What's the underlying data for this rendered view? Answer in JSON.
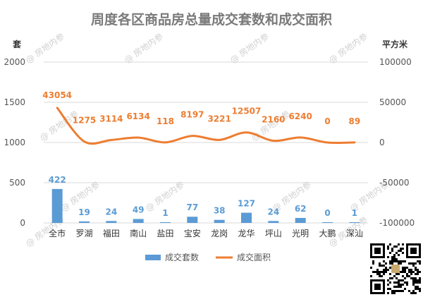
{
  "chart_data": {
    "type": "bar",
    "title": "周度各区商品房总量成交套数和成交面积",
    "y_left_unit": "套",
    "y_right_unit": "平方米",
    "categories": [
      "全市",
      "罗湖",
      "福田",
      "南山",
      "盐田",
      "宝安",
      "龙岗",
      "龙华",
      "坪山",
      "光明",
      "大鹏",
      "深汕"
    ],
    "series": [
      {
        "name": "成交套数",
        "type": "bar",
        "axis": "left",
        "color": "#5b9bd5",
        "values": [
          422,
          19,
          24,
          49,
          1,
          77,
          38,
          127,
          24,
          62,
          0,
          1
        ]
      },
      {
        "name": "成交面积",
        "type": "line",
        "axis": "right",
        "color": "#ed7d31",
        "values": [
          43054,
          1275,
          3114,
          6134,
          118,
          8197,
          3221,
          12507,
          2160,
          6240,
          0,
          89
        ]
      }
    ],
    "y_left": {
      "min": 0,
      "max": 2000,
      "ticks": [
        0,
        500,
        1000,
        1500,
        2000
      ]
    },
    "y_right": {
      "min": -100000,
      "max": 100000,
      "ticks": [
        -100000,
        -50000,
        0,
        50000,
        100000
      ]
    },
    "grid": true,
    "legend_position": "bottom"
  },
  "watermark": "@ 房地内参"
}
